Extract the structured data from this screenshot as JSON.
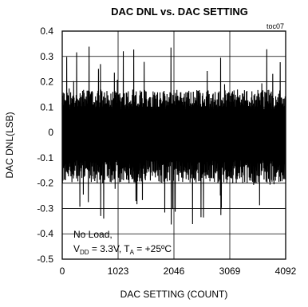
{
  "chart_data": {
    "type": "line",
    "title": "DAC DNL vs. DAC SETTING",
    "tag": "toc07",
    "xlabel": "DAC SETTING  (COUNT)",
    "ylabel": "DAC DNL(LSB)",
    "xlim": [
      0,
      4092
    ],
    "ylim": [
      -0.5,
      0.4
    ],
    "xticks": [
      0,
      1023,
      2046,
      3069,
      4092
    ],
    "xtick_labels": [
      "0",
      "1023",
      "2046",
      "3069",
      "4092"
    ],
    "yticks": [
      0.4,
      0.3,
      0.2,
      0.1,
      0,
      -0.1,
      -0.2,
      -0.3,
      -0.4,
      -0.5
    ],
    "ytick_labels": [
      "0.4",
      "0.3",
      "0.2",
      "0.1",
      "0",
      "-0.1",
      "-0.2",
      "-0.3",
      "-0.4",
      "-0.5"
    ],
    "grid": true,
    "annotation": {
      "line1": "No Load,",
      "line2_v": "V",
      "line2_vsub": "DD",
      "line2_mid": " = 3.3V, T",
      "line2_tsub": "A",
      "line2_end": " = +25ºC"
    },
    "series": [
      {
        "color": "#000000",
        "envelope": {
          "typical_high": 0.17,
          "typical_low": -0.2,
          "max_high": 0.34,
          "min_low": -0.38
        }
      }
    ]
  }
}
